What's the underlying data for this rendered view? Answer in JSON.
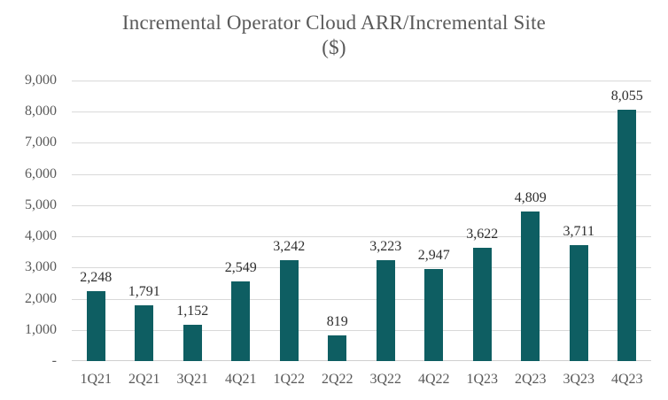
{
  "chart_data": {
    "type": "bar",
    "title": "Incremental Operator Cloud ARR/Incremental Site ($)",
    "title_lines": [
      "Incremental Operator Cloud ARR/Incremental Site",
      "($)"
    ],
    "categories": [
      "1Q21",
      "2Q21",
      "3Q21",
      "4Q21",
      "1Q22",
      "2Q22",
      "3Q22",
      "4Q22",
      "1Q23",
      "2Q23",
      "3Q23",
      "4Q23"
    ],
    "values": [
      2248,
      1791,
      1152,
      2549,
      3242,
      819,
      3223,
      2947,
      3622,
      4809,
      3711,
      8055
    ],
    "value_labels": [
      "2,248",
      "1,791",
      "1,152",
      "2,549",
      "3,242",
      "819",
      "3,223",
      "2,947",
      "3,622",
      "4,809",
      "3,711",
      "8,055"
    ],
    "xlabel": "",
    "ylabel": "",
    "ylim": [
      0,
      9000
    ],
    "ytick_step": 1000,
    "ytick_labels": [
      "-",
      "1,000",
      "2,000",
      "3,000",
      "4,000",
      "5,000",
      "6,000",
      "7,000",
      "8,000",
      "9,000"
    ],
    "zero_tick_label": "-",
    "grid": "horizontal",
    "legend": "none",
    "colors": {
      "bar": "#0e5e62",
      "gridline": "#d9d9d9",
      "axis_line": "#cfcfcf",
      "axis_label": "#595959",
      "data_label": "#2e2e2e",
      "title": "#595959",
      "background": "#ffffff"
    }
  }
}
